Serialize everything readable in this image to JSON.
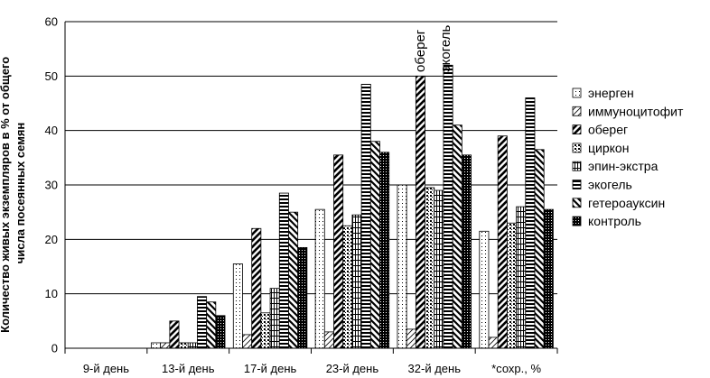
{
  "chart_data": {
    "type": "bar",
    "title": "",
    "xlabel": "",
    "ylabel": "Количество живых экземпляров в % от общего числа посеянных семян",
    "ylabel_lines": [
      "Количество живых экземпляров в % от общего",
      "числа посеянных семян"
    ],
    "ylim": [
      0,
      60
    ],
    "yticks": [
      0,
      10,
      20,
      30,
      40,
      50,
      60
    ],
    "grid": true,
    "legend_position": "right",
    "categories": [
      "9-й день",
      "13-й день",
      "17-й день",
      "23-й день",
      "32-й день",
      "*сохр., %"
    ],
    "series": [
      {
        "name": "энерген",
        "pattern": "dots",
        "values": [
          0,
          1,
          15.5,
          25.5,
          30,
          21.5
        ]
      },
      {
        "name": "иммуноцитофит",
        "pattern": "diag-thin",
        "values": [
          0,
          1,
          2.5,
          3,
          3.5,
          2
        ]
      },
      {
        "name": "оберег",
        "pattern": "diag-thick",
        "values": [
          0,
          5,
          22,
          35.5,
          50,
          39
        ]
      },
      {
        "name": "циркон",
        "pattern": "checker",
        "values": [
          0,
          1,
          6.5,
          22.5,
          29.5,
          23
        ]
      },
      {
        "name": "эпин-экстра",
        "pattern": "vlines",
        "values": [
          0,
          1,
          11,
          24.5,
          29,
          26
        ]
      },
      {
        "name": "экогель",
        "pattern": "hlines",
        "values": [
          0,
          9.5,
          28.5,
          48.5,
          52,
          46
        ]
      },
      {
        "name": "гетероауксин",
        "pattern": "hatch-back",
        "values": [
          0,
          8.5,
          25,
          38,
          41,
          36.5
        ]
      },
      {
        "name": "контроль",
        "pattern": "dense",
        "values": [
          0,
          6,
          18.5,
          36,
          35.5,
          25.5
        ]
      }
    ],
    "annotations": [
      "оберег",
      "экогель"
    ]
  }
}
